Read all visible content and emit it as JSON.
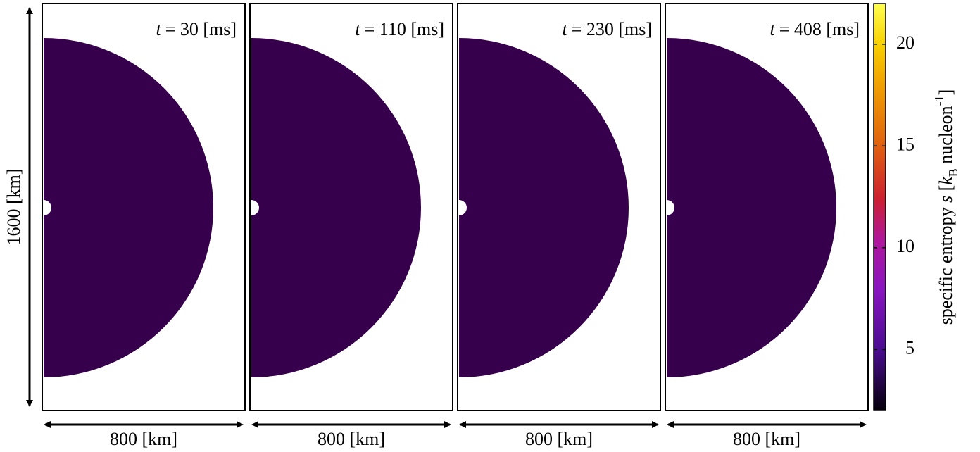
{
  "panels": [
    {
      "time_symbol": "t",
      "time_text": "= 30 [ms]",
      "width_label": "800 [km]"
    },
    {
      "time_symbol": "t",
      "time_text": "= 110 [ms]",
      "width_label": "800 [km]"
    },
    {
      "time_symbol": "t",
      "time_text": "= 230 [ms]",
      "width_label": "800 [km]"
    },
    {
      "time_symbol": "t",
      "time_text": "= 408 [ms]",
      "width_label": "800 [km]"
    }
  ],
  "height_label": "1600 [km]",
  "colorbar": {
    "label_parts": [
      "specific entropy ",
      "s",
      " [",
      "k",
      "B",
      " nucleon",
      "-1",
      "]"
    ],
    "clim": [
      2,
      22
    ],
    "ticks": [
      5,
      10,
      15,
      20
    ]
  }
}
